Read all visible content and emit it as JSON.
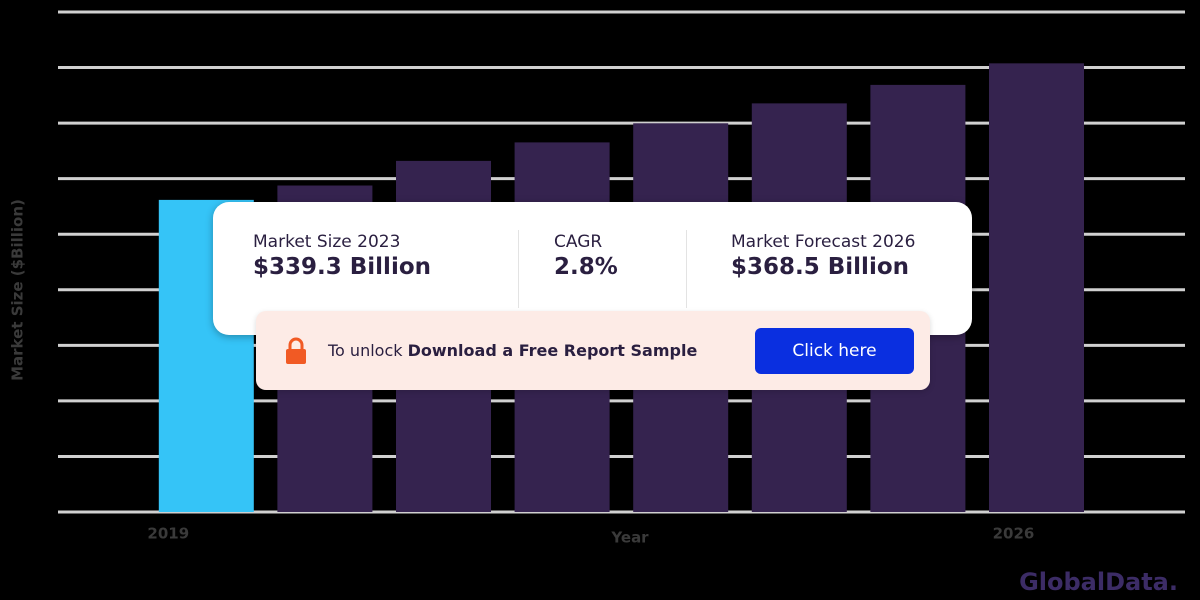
{
  "chart_data": {
    "type": "bar",
    "categories": [
      "2019",
      null,
      null,
      null,
      null,
      null,
      null,
      "2026"
    ],
    "values": [
      302,
      309,
      321,
      330,
      339.3,
      349,
      358,
      368.5
    ],
    "colors": [
      "#35c4f7",
      "#35234f",
      "#35234f",
      "#35234f",
      "#35234f",
      "#35234f",
      "#35234f",
      "#35234f"
    ],
    "ylim": [
      150,
      393.5
    ],
    "x_label": "Year",
    "y_label": "Market Size ($Billion)",
    "grid": true
  },
  "overlay": {
    "stats": [
      {
        "label": "Market Size 2023",
        "value": "$339.3 Billion"
      },
      {
        "label": "CAGR",
        "value": "2.8%"
      },
      {
        "label": "Market Forecast 2026",
        "value": "$368.5 Billion"
      }
    ],
    "banner": {
      "prefix": "To unlock",
      "bold": "Download a Free Report Sample",
      "button": "Click here"
    },
    "brand": "GlobalData."
  }
}
